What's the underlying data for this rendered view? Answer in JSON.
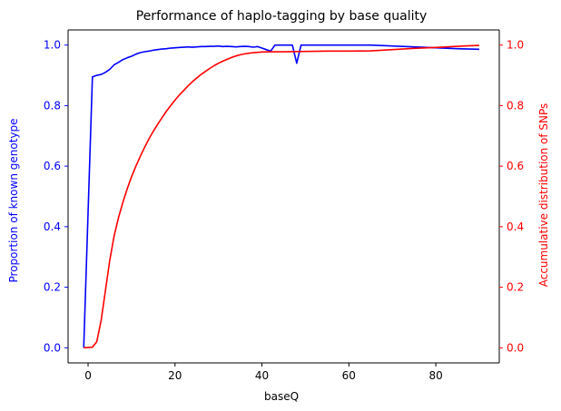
{
  "chart_data": {
    "type": "line",
    "title": "Performance of haplo-tagging by base quality",
    "xlabel": "baseQ",
    "ylabel_left": "Proportion of known genotype",
    "ylabel_right": "Accumulative distribution of SNPs",
    "xlim": [
      -4.6,
      94.6
    ],
    "ylim_left": [
      -0.05,
      1.05
    ],
    "ylim_right": [
      -0.05,
      1.05
    ],
    "x_ticks": [
      0,
      20,
      40,
      60,
      80
    ],
    "y_ticks_left": [
      0.0,
      0.2,
      0.4,
      0.6,
      0.8,
      1.0
    ],
    "y_ticks_right": [
      0.0,
      0.2,
      0.4,
      0.6,
      0.8,
      1.0
    ],
    "grid": false,
    "colors": {
      "left": "#0000ff",
      "right": "#ff0000",
      "axes": "#000000"
    },
    "series": [
      {
        "axis": "left",
        "color": "#0000ff",
        "points": [
          [
            -1,
            0.0
          ],
          [
            1,
            0.895
          ],
          [
            2,
            0.9
          ],
          [
            3,
            0.903
          ],
          [
            4,
            0.91
          ],
          [
            5,
            0.92
          ],
          [
            6,
            0.935
          ],
          [
            7,
            0.943
          ],
          [
            8,
            0.952
          ],
          [
            9,
            0.958
          ],
          [
            10,
            0.963
          ],
          [
            11,
            0.97
          ],
          [
            12,
            0.975
          ],
          [
            13,
            0.978
          ],
          [
            14,
            0.98
          ],
          [
            15,
            0.983
          ],
          [
            16,
            0.985
          ],
          [
            17,
            0.987
          ],
          [
            18,
            0.988
          ],
          [
            19,
            0.99
          ],
          [
            20,
            0.991
          ],
          [
            21,
            0.992
          ],
          [
            22,
            0.993
          ],
          [
            23,
            0.994
          ],
          [
            24,
            0.993
          ],
          [
            25,
            0.994
          ],
          [
            26,
            0.995
          ],
          [
            27,
            0.995
          ],
          [
            28,
            0.996
          ],
          [
            29,
            0.996
          ],
          [
            30,
            0.997
          ],
          [
            31,
            0.995
          ],
          [
            32,
            0.996
          ],
          [
            33,
            0.995
          ],
          [
            34,
            0.994
          ],
          [
            35,
            0.995
          ],
          [
            36,
            0.996
          ],
          [
            37,
            0.995
          ],
          [
            38,
            0.993
          ],
          [
            39,
            0.995
          ],
          [
            40,
            0.99
          ],
          [
            41,
            0.985
          ],
          [
            42,
            0.98
          ],
          [
            43,
            1.0
          ],
          [
            44,
            1.0
          ],
          [
            45,
            1.0
          ],
          [
            46,
            1.0
          ],
          [
            47,
            1.0
          ],
          [
            48,
            0.94
          ],
          [
            49,
            1.0
          ],
          [
            55,
            1.0
          ],
          [
            60,
            1.0
          ],
          [
            65,
            1.0
          ],
          [
            70,
            0.997
          ],
          [
            75,
            0.994
          ],
          [
            80,
            0.991
          ],
          [
            85,
            0.988
          ],
          [
            90,
            0.986
          ]
        ]
      },
      {
        "axis": "right",
        "color": "#ff0000",
        "points": [
          [
            -1,
            0.0
          ],
          [
            1,
            0.002
          ],
          [
            2,
            0.02
          ],
          [
            3,
            0.09
          ],
          [
            4,
            0.19
          ],
          [
            5,
            0.29
          ],
          [
            6,
            0.37
          ],
          [
            7,
            0.43
          ],
          [
            8,
            0.48
          ],
          [
            9,
            0.525
          ],
          [
            10,
            0.565
          ],
          [
            11,
            0.6
          ],
          [
            12,
            0.632
          ],
          [
            13,
            0.662
          ],
          [
            14,
            0.69
          ],
          [
            15,
            0.715
          ],
          [
            16,
            0.738
          ],
          [
            17,
            0.76
          ],
          [
            18,
            0.781
          ],
          [
            19,
            0.8
          ],
          [
            20,
            0.818
          ],
          [
            21,
            0.835
          ],
          [
            22,
            0.85
          ],
          [
            23,
            0.865
          ],
          [
            24,
            0.879
          ],
          [
            25,
            0.891
          ],
          [
            26,
            0.903
          ],
          [
            27,
            0.913
          ],
          [
            28,
            0.923
          ],
          [
            29,
            0.932
          ],
          [
            30,
            0.94
          ],
          [
            31,
            0.947
          ],
          [
            32,
            0.953
          ],
          [
            33,
            0.959
          ],
          [
            34,
            0.964
          ],
          [
            35,
            0.968
          ],
          [
            36,
            0.971
          ],
          [
            37,
            0.973
          ],
          [
            38,
            0.975
          ],
          [
            39,
            0.976
          ],
          [
            40,
            0.977
          ],
          [
            42,
            0.978
          ],
          [
            45,
            0.978
          ],
          [
            50,
            0.979
          ],
          [
            55,
            0.98
          ],
          [
            60,
            0.98
          ],
          [
            65,
            0.981
          ],
          [
            70,
            0.985
          ],
          [
            75,
            0.989
          ],
          [
            80,
            0.992
          ],
          [
            85,
            0.996
          ],
          [
            90,
            0.999
          ]
        ]
      }
    ]
  }
}
